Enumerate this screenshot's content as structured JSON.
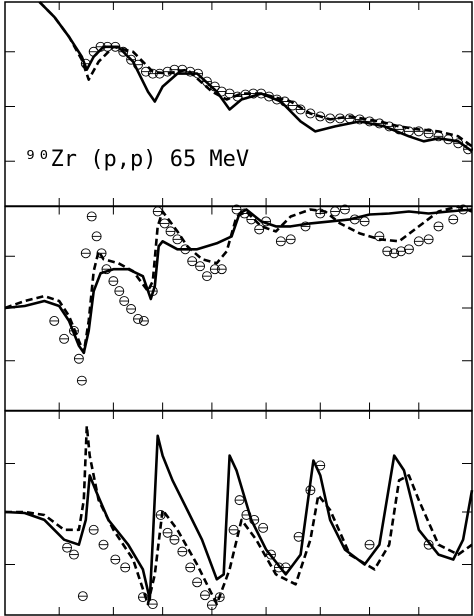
{
  "chart_data": [
    {
      "type": "line",
      "annotation": "⁹⁰Zr (p,p) 65 MeV",
      "xlim": [
        0,
        47.4
      ],
      "ylim": [
        0,
        20.5
      ],
      "xticks": [
        5.5,
        11,
        16,
        21,
        26.5,
        32,
        37,
        42
      ],
      "yticks": [
        4.5,
        10,
        15.5
      ],
      "series": [
        {
          "style": "solid",
          "color": "#000000",
          "x": [
            3.5,
            5,
            6.5,
            7.8,
            8.3,
            9,
            10,
            11.5,
            13,
            14.5,
            15.2,
            16,
            17.5,
            19.5,
            21.5,
            22.8,
            24,
            26,
            28,
            30,
            31.5,
            33.5,
            36,
            38.5,
            41,
            42.5,
            44,
            46,
            47.4
          ],
          "values": [
            20.5,
            19,
            17,
            15,
            13.7,
            15,
            16,
            16,
            14.5,
            11.5,
            10.5,
            12,
            13.3,
            13.3,
            11.5,
            9.7,
            10.7,
            11.3,
            10.5,
            8.5,
            7.5,
            8,
            8.5,
            8,
            7,
            6.5,
            6.8,
            6.5,
            5.5
          ]
        },
        {
          "style": "dashed",
          "color": "#000000",
          "x": [
            3.5,
            5,
            6.5,
            7.8,
            8.5,
            9.5,
            11,
            13,
            15,
            16.5,
            18.5,
            21,
            22.5,
            24,
            26,
            29,
            31,
            33,
            35,
            38,
            40,
            42,
            44,
            46,
            47.4
          ],
          "values": [
            20.5,
            19,
            17,
            14.7,
            12.7,
            14.5,
            16,
            15.5,
            13.5,
            13.3,
            13.7,
            11.5,
            10.7,
            11.3,
            11.3,
            10.5,
            9.3,
            8.7,
            9,
            8.5,
            8,
            7.7,
            7.5,
            7,
            6
          ]
        },
        {
          "style": "circle",
          "color": "#000000",
          "x": [
            8.2,
            9,
            9.7,
            10.4,
            11.2,
            12,
            12.8,
            13.5,
            14.3,
            15,
            15.7,
            16.5,
            17.2,
            18,
            18.8,
            19.6,
            20.5,
            21.3,
            22,
            22.8,
            23.6,
            24.4,
            25.2,
            26,
            26.8,
            27.6,
            28.4,
            29.2,
            30,
            31,
            32,
            33,
            34,
            35,
            36,
            37,
            38,
            39,
            40,
            41,
            42,
            43,
            44,
            45,
            46,
            47
          ],
          "values": [
            14.3,
            15.5,
            16,
            16,
            16,
            15.5,
            14.7,
            14.2,
            13.5,
            13.3,
            13.3,
            13.5,
            13.7,
            13.7,
            13.5,
            13.3,
            12.5,
            12,
            11.5,
            11.3,
            11,
            11.2,
            11.3,
            11.3,
            11,
            10.7,
            10.5,
            10.1,
            9.7,
            9.3,
            9,
            8.8,
            8.8,
            8.8,
            8.7,
            8.5,
            8.3,
            8,
            7.7,
            7.5,
            7.5,
            7.3,
            7,
            6.7,
            6.3,
            5.7
          ]
        }
      ]
    },
    {
      "type": "line",
      "xlim": [
        0,
        47.4
      ],
      "ylim": [
        0,
        20.5
      ],
      "xticks": [
        5.5,
        11,
        16,
        21,
        26.5,
        32,
        37,
        42
      ],
      "yticks": [
        5,
        10.3,
        15.5
      ],
      "series": [
        {
          "style": "solid",
          "color": "#000000",
          "x": [
            0,
            2,
            4,
            5.5,
            6.5,
            7.5,
            8,
            8.5,
            9,
            9.7,
            11,
            12.5,
            14,
            14.8,
            15.2,
            15.6,
            16,
            17.5,
            19.5,
            21.5,
            23,
            23.8,
            24.5,
            26,
            27.5,
            29,
            31,
            33,
            35,
            37,
            39,
            41,
            43,
            45,
            47.4
          ],
          "values": [
            10.3,
            10.5,
            11,
            10.5,
            9,
            6.5,
            5.8,
            8,
            12,
            13.8,
            14.2,
            14.2,
            13.5,
            11.2,
            12.5,
            16.5,
            17,
            16.2,
            16.2,
            16.8,
            17.5,
            19.8,
            20.2,
            19,
            18.5,
            18.5,
            18.8,
            19,
            19.2,
            19.7,
            19.8,
            20,
            19.8,
            20,
            20.2
          ]
        },
        {
          "style": "dashed",
          "color": "#000000",
          "x": [
            0,
            2,
            4,
            5.5,
            6.5,
            7.5,
            8,
            8.5,
            9,
            9.5,
            10,
            11.5,
            13,
            14.5,
            15,
            15.5,
            16,
            17.5,
            18.5,
            20,
            21.5,
            22.5,
            23.5,
            24.5,
            26,
            27.5,
            29,
            31,
            32.5,
            34,
            36,
            38,
            40,
            42,
            44,
            46,
            47.4
          ],
          "values": [
            10.3,
            11,
            11.5,
            11,
            9.5,
            7,
            5.8,
            9,
            14,
            16,
            15.2,
            14.8,
            14,
            12,
            13,
            18.5,
            20,
            18,
            16.5,
            15.2,
            14.8,
            16,
            19.5,
            20,
            18.5,
            18,
            19.5,
            20.2,
            20,
            18.8,
            17.8,
            17.2,
            17,
            18.5,
            20,
            20.5,
            20
          ]
        },
        {
          "style": "circle",
          "color": "#000000",
          "x": [
            5,
            6,
            7,
            7.5,
            7.8,
            8.2,
            8.8,
            9.3,
            9.8,
            10.3,
            11,
            11.6,
            12.1,
            12.8,
            13.5,
            14.1,
            15,
            15.5,
            16.2,
            16.8,
            17.5,
            18.3,
            19,
            19.8,
            20.5,
            21.3,
            22,
            23.5,
            24.3,
            25,
            25.8,
            26.5,
            28,
            29,
            30.5,
            32,
            33.5,
            34.5,
            35.5,
            36.5,
            38,
            38.8,
            39.5,
            40.2,
            41,
            42,
            43,
            44,
            45.5,
            46.5
          ],
          "values": [
            9,
            7.2,
            8,
            5.2,
            3,
            15.8,
            19.5,
            17.5,
            15.8,
            14.2,
            13,
            12,
            11,
            10.2,
            9.2,
            9,
            12,
            20,
            18.8,
            18,
            17.2,
            16.2,
            15,
            14.5,
            13.5,
            14.2,
            14.2,
            20.2,
            19.8,
            19.2,
            18.2,
            19,
            17,
            17.2,
            18.5,
            19.8,
            20,
            20.2,
            19.2,
            19,
            17.5,
            16,
            15.8,
            16,
            16.2,
            17,
            17.2,
            18.5,
            19.2,
            20.2
          ]
        }
      ]
    },
    {
      "type": "line",
      "xlim": [
        0,
        47.4
      ],
      "ylim": [
        0,
        20.6
      ],
      "xticks": [
        5.5,
        11,
        16,
        21,
        26.5,
        32,
        37,
        42
      ],
      "yticks": [
        5.1,
        10.4,
        15.3
      ],
      "series": [
        {
          "style": "solid",
          "color": "#000000",
          "x": [
            0,
            2,
            4,
            6,
            7.5,
            8.2,
            8.6,
            9.2,
            10.5,
            12.5,
            14,
            14.7,
            15,
            15.5,
            16,
            17,
            18.5,
            20,
            21.5,
            22.2,
            22.8,
            23.5,
            25,
            26.5,
            28.5,
            30,
            31.3,
            32,
            33,
            34.5,
            36.5,
            38,
            39.5,
            40.5,
            42,
            44,
            45.5,
            46.5,
            47.4
          ],
          "values": [
            10.4,
            10.3,
            9.6,
            7.6,
            7.1,
            9.6,
            14.1,
            12.6,
            9.6,
            7.1,
            4.6,
            1.6,
            7.6,
            18.1,
            16.1,
            13.6,
            10.6,
            7.6,
            3.6,
            4.1,
            16.1,
            14.6,
            9.6,
            6.6,
            4.1,
            6.1,
            15.6,
            14.1,
            9.6,
            6.6,
            5.1,
            7.1,
            16.1,
            14.6,
            8.6,
            6.1,
            5.6,
            7.6,
            12.6
          ]
        },
        {
          "style": "dashed",
          "color": "#000000",
          "x": [
            0,
            2,
            4,
            6,
            7.5,
            8,
            8.3,
            8.6,
            9.5,
            11,
            13,
            14.5,
            15.2,
            16,
            17.5,
            19.5,
            21.5,
            22.8,
            24,
            25.5,
            27.5,
            29.5,
            31,
            31.8,
            33,
            35,
            37.5,
            39,
            40,
            41,
            42,
            44,
            46,
            47.4
          ],
          "values": [
            10.4,
            10.4,
            10.1,
            8.6,
            8.6,
            11.6,
            19.1,
            16.1,
            11.6,
            8.6,
            5.6,
            1.1,
            4.1,
            10.6,
            8.6,
            5.1,
            1.1,
            4.6,
            9.6,
            7.6,
            4.1,
            3.1,
            7.6,
            12.1,
            10.6,
            6.1,
            4.6,
            7.1,
            13.6,
            14.1,
            11.6,
            7.1,
            6.1,
            7.1
          ]
        },
        {
          "style": "circle",
          "color": "#000000",
          "x": [
            6.3,
            7,
            7.9,
            9,
            10,
            11.2,
            12.2,
            14,
            15,
            15.8,
            16.5,
            17.2,
            18,
            18.8,
            19.5,
            20.3,
            21,
            21.8,
            23.2,
            23.8,
            24.5,
            25.3,
            26.2,
            27,
            27.8,
            28.5,
            29.8,
            31,
            32,
            37,
            43
          ],
          "values": [
            6.8,
            6.1,
            1.9,
            8.6,
            7.1,
            5.6,
            4.8,
            1.8,
            1.1,
            10.1,
            8.3,
            7.6,
            6.4,
            4.8,
            3.3,
            2,
            1,
            1.8,
            8.6,
            11.6,
            10.1,
            9.6,
            8.8,
            6.1,
            4.8,
            4.8,
            7.9,
            12.6,
            15.1,
            7.1,
            7.1
          ]
        }
      ]
    }
  ]
}
